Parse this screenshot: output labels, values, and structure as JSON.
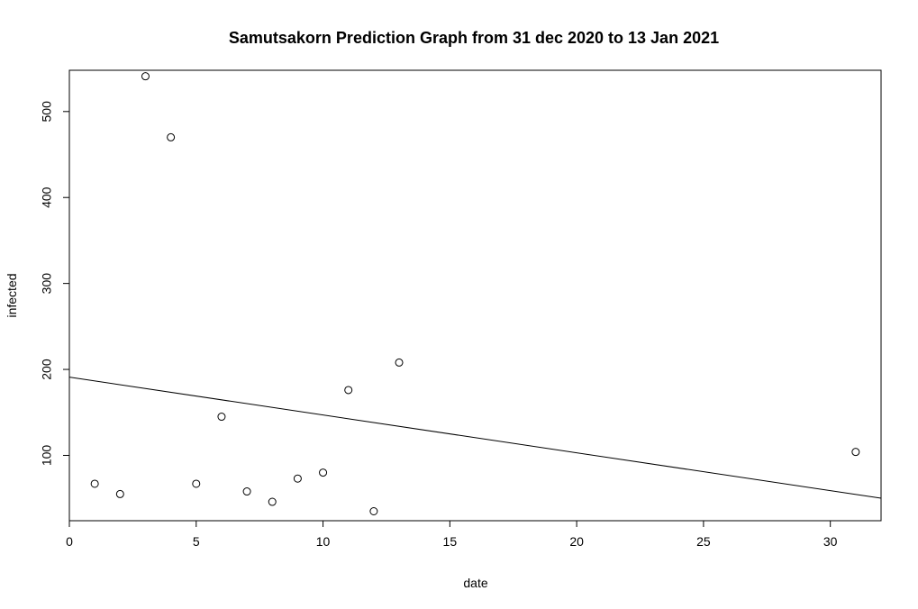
{
  "chart_data": {
    "type": "scatter",
    "title": "Samutsakorn Prediction Graph from 31 dec 2020 to 13 Jan 2021",
    "xlabel": "date",
    "ylabel": "infected",
    "xlim": [
      0,
      32
    ],
    "ylim": [
      24,
      548
    ],
    "x_ticks": [
      0,
      5,
      10,
      15,
      20,
      25,
      30
    ],
    "y_ticks": [
      100,
      200,
      300,
      400,
      500
    ],
    "grid": false,
    "legend": "none",
    "points": [
      {
        "x": 1,
        "y": 67
      },
      {
        "x": 2,
        "y": 55
      },
      {
        "x": 3,
        "y": 541
      },
      {
        "x": 4,
        "y": 470
      },
      {
        "x": 5,
        "y": 67
      },
      {
        "x": 6,
        "y": 145
      },
      {
        "x": 7,
        "y": 58
      },
      {
        "x": 8,
        "y": 46
      },
      {
        "x": 9,
        "y": 73
      },
      {
        "x": 10,
        "y": 80
      },
      {
        "x": 11,
        "y": 176
      },
      {
        "x": 12,
        "y": 35
      },
      {
        "x": 13,
        "y": 208
      },
      {
        "x": 31,
        "y": 104
      }
    ],
    "regression_line": {
      "intercept": 191,
      "slope": -4.4
    }
  }
}
